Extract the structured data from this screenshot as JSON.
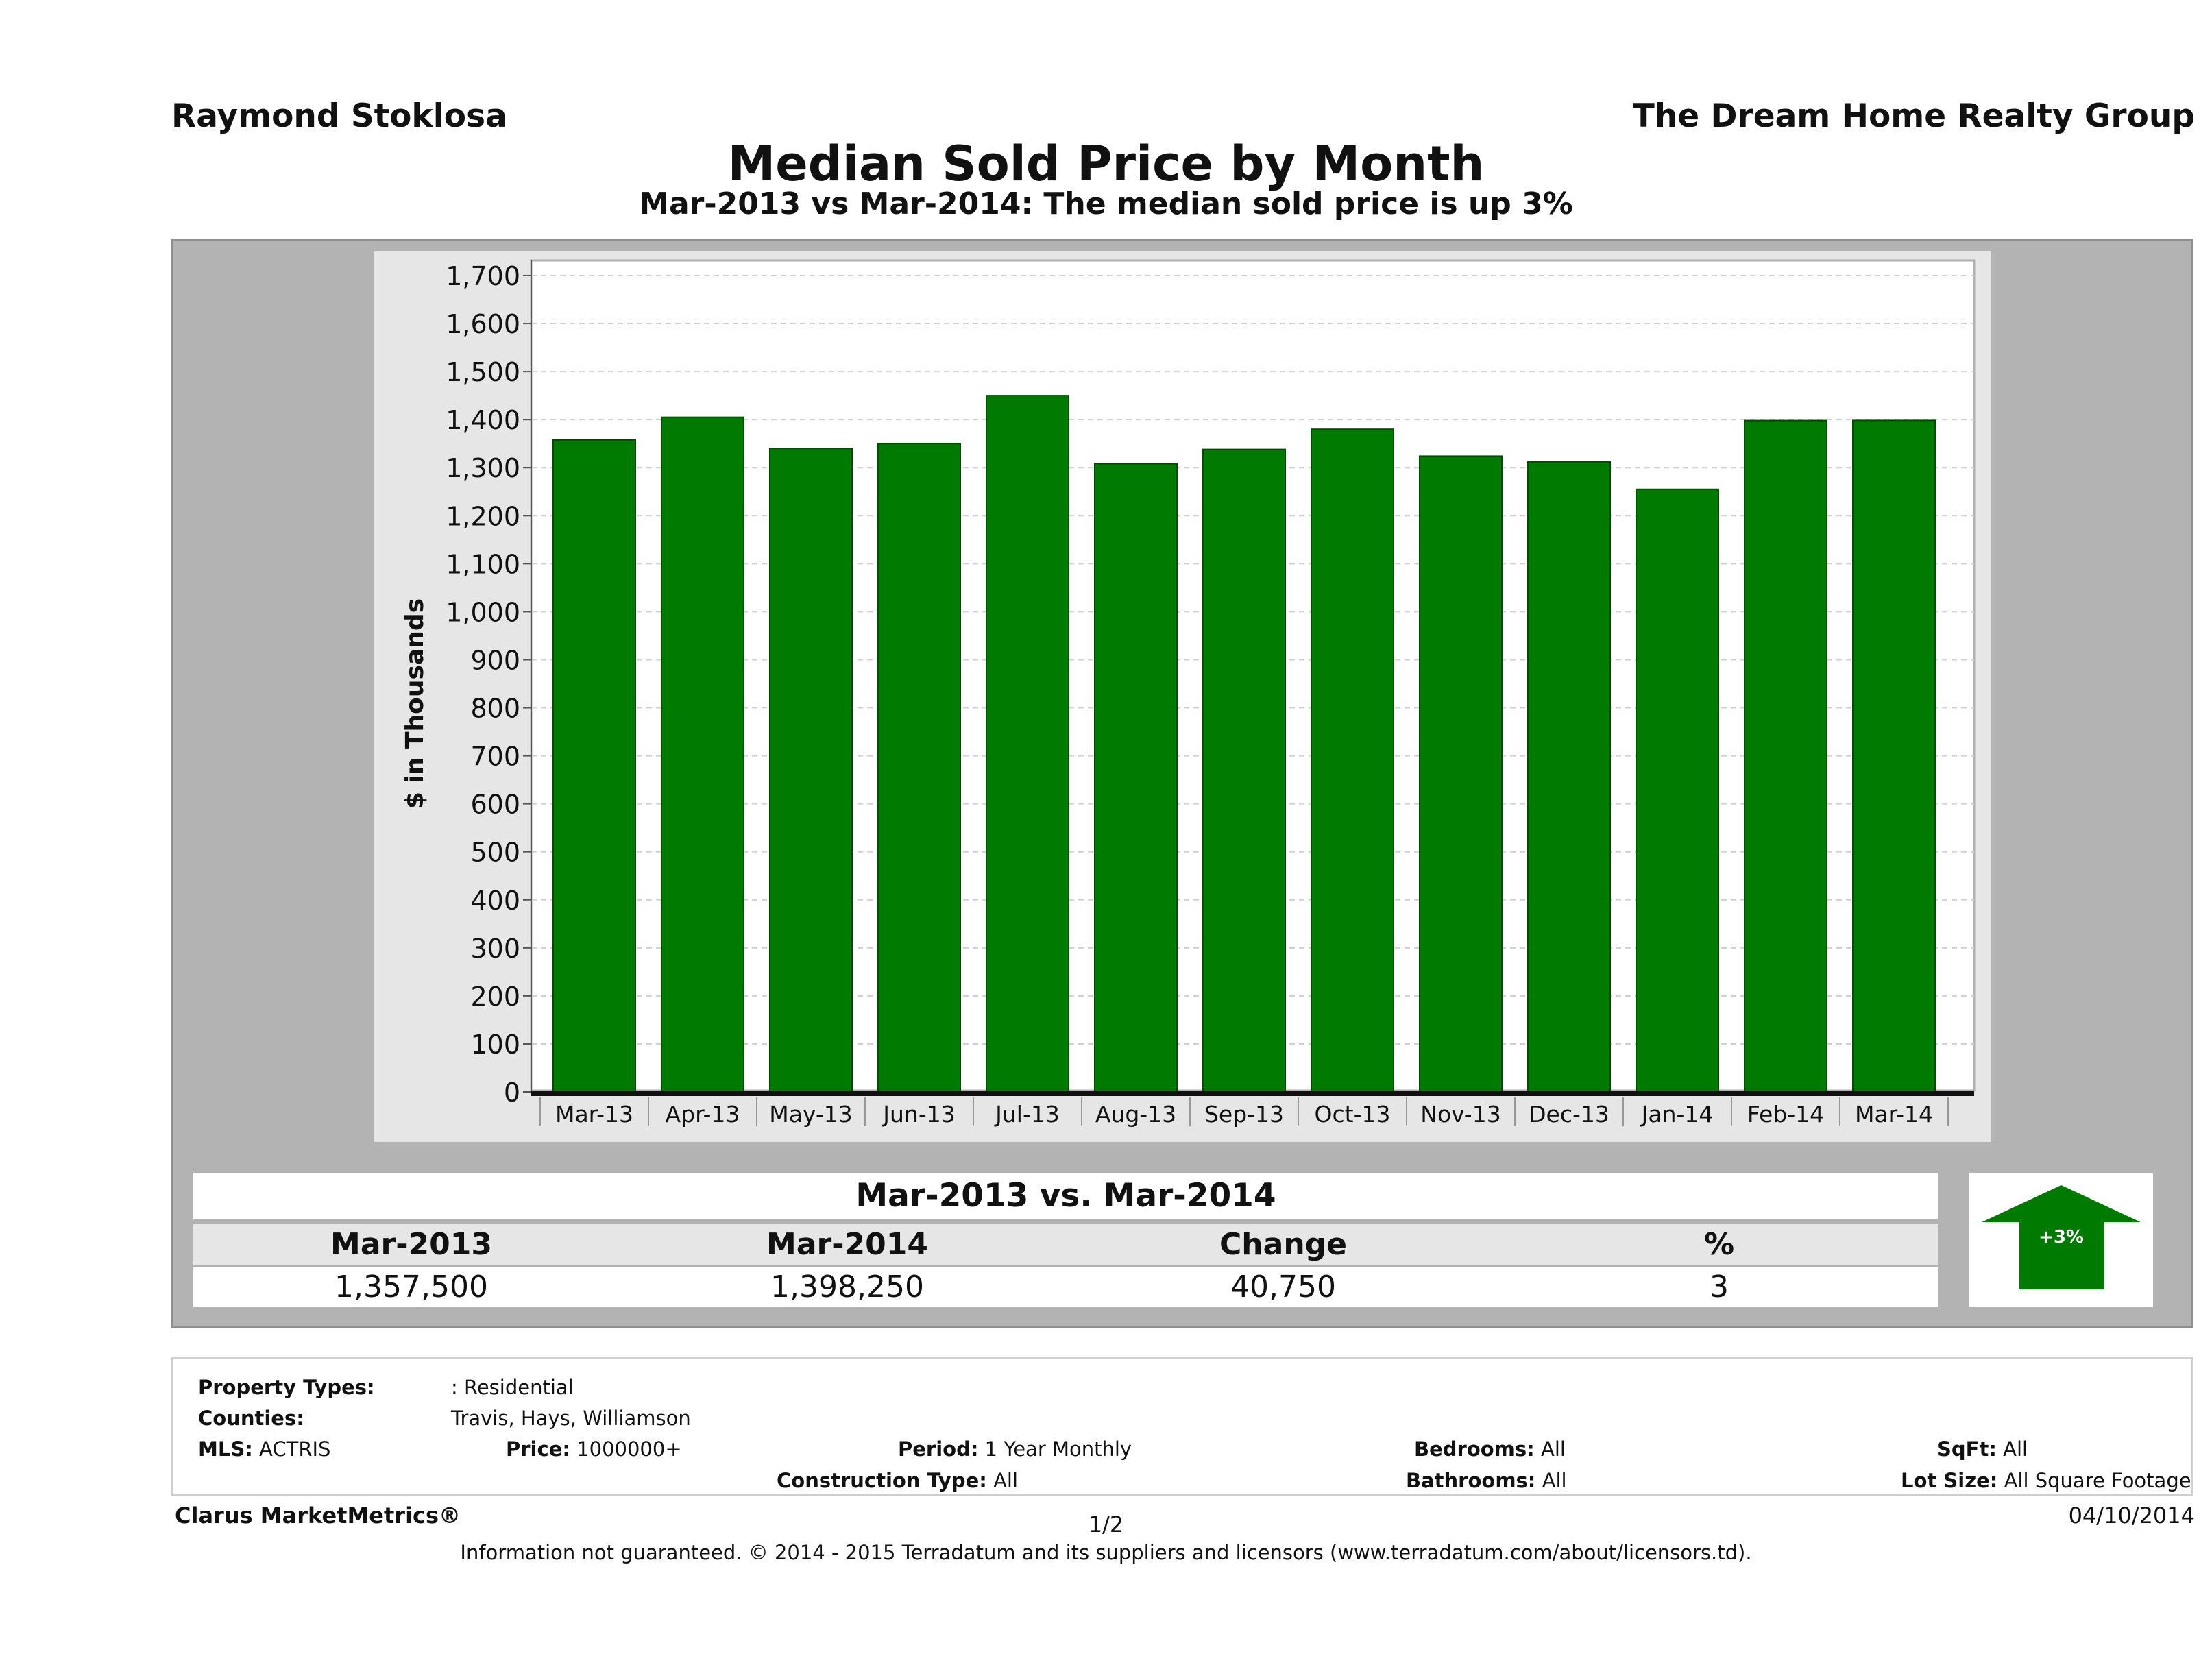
{
  "header": {
    "agent": "Raymond Stoklosa",
    "company": "The Dream Home Realty Group"
  },
  "colors": {
    "bar": "#007a00",
    "frame": "#b3b3b3",
    "panel": "#e6e6e6"
  },
  "chart_data": {
    "type": "bar",
    "title": "Median Sold Price by Month",
    "subtitle": "Mar-2013 vs Mar-2014: The median sold price is up 3%",
    "xlabel": "",
    "ylabel": "$ in Thousands",
    "ylim": [
      0,
      1750
    ],
    "yticks": [
      "0",
      "100",
      "200",
      "300",
      "400",
      "500",
      "600",
      "700",
      "800",
      "900",
      "1,000",
      "1,100",
      "1,200",
      "1,300",
      "1,400",
      "1,500",
      "1,600",
      "1,700"
    ],
    "grid": true,
    "categories": [
      "Mar-13",
      "Apr-13",
      "May-13",
      "Jun-13",
      "Jul-13",
      "Aug-13",
      "Sep-13",
      "Oct-13",
      "Nov-13",
      "Dec-13",
      "Jan-14",
      "Feb-14",
      "Mar-14"
    ],
    "values": [
      1357.5,
      1405,
      1340,
      1350,
      1450,
      1308,
      1338,
      1380,
      1324,
      1312,
      1255,
      1398,
      1398.25
    ]
  },
  "summary": {
    "title": "Mar-2013 vs. Mar-2014",
    "headers": [
      "Mar-2013",
      "Mar-2014",
      "Change",
      "%"
    ],
    "values": [
      "1,357,500",
      "1,398,250",
      "40,750",
      "3"
    ],
    "arrow_label": "+3%",
    "arrow_icon": "up-arrow-icon"
  },
  "criteria": {
    "property_types_label": "Property Types:",
    "property_types_value": ": Residential",
    "counties_label": "Counties:",
    "counties_value": "Travis, Hays, Williamson",
    "mls_label": "MLS:",
    "mls_value": "ACTRIS",
    "price_label": "Price:",
    "price_value": "1000000+",
    "period_label": "Period:",
    "period_value": "1 Year Monthly",
    "construction_label": "Construction Type:",
    "construction_value": "All",
    "bedrooms_label": "Bedrooms:",
    "bedrooms_value": "All",
    "bathrooms_label": "Bathrooms:",
    "bathrooms_value": "All",
    "sqft_label": "SqFt:",
    "sqft_value": "All",
    "lotsize_label": "Lot Size:",
    "lotsize_value": "All Square Footage"
  },
  "footer": {
    "brand": "Clarus MarketMetrics®",
    "page": "1/2",
    "date": "04/10/2014",
    "note": "Information not guaranteed. © 2014 - 2015 Terradatum and its suppliers and licensors (www.terradatum.com/about/licensors.td)."
  }
}
